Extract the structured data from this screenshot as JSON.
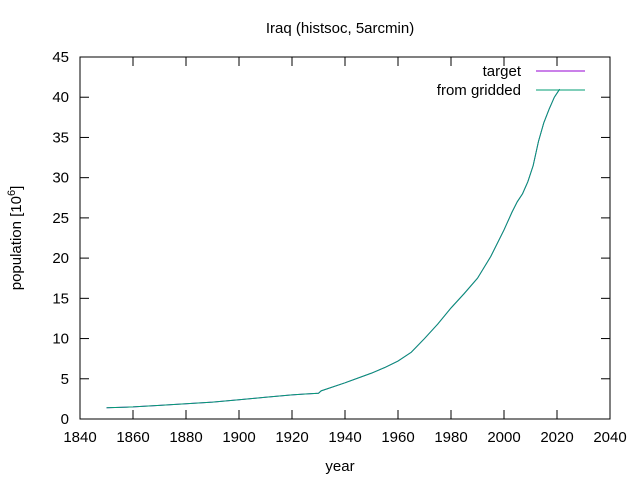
{
  "chart_data": {
    "type": "line",
    "title": "Iraq (histsoc, 5arcmin)",
    "xlabel": "year",
    "ylabel_main": "population [10",
    "ylabel_exp": "6",
    "ylabel_close": "]",
    "xlim": [
      1840,
      2040
    ],
    "ylim": [
      0,
      45
    ],
    "xticks": [
      1840,
      1860,
      1880,
      1900,
      1920,
      1940,
      1960,
      1980,
      2000,
      2020,
      2040
    ],
    "yticks": [
      0,
      5,
      10,
      15,
      20,
      25,
      30,
      35,
      40,
      45
    ],
    "grid": false,
    "legend_position": "top-right",
    "series": [
      {
        "name": "target",
        "color": "#9400d3",
        "x": [
          1850,
          1860,
          1870,
          1880,
          1890,
          1900,
          1910,
          1920,
          1925,
          1930,
          1931,
          1940,
          1950,
          1955,
          1960,
          1965,
          1970,
          1975,
          1980,
          1985,
          1990,
          1995,
          2000,
          2003,
          2005,
          2007,
          2009,
          2011,
          2013,
          2015,
          2017,
          2019,
          2021
        ],
        "y": [
          1.4,
          1.5,
          1.7,
          1.9,
          2.1,
          2.4,
          2.7,
          3.0,
          3.1,
          3.2,
          3.5,
          4.5,
          5.7,
          6.4,
          7.2,
          8.3,
          10.0,
          11.8,
          13.8,
          15.6,
          17.5,
          20.2,
          23.5,
          25.7,
          27.0,
          28.0,
          29.5,
          31.5,
          34.5,
          36.8,
          38.5,
          40.0,
          41.0
        ]
      },
      {
        "name": "from gridded",
        "color": "#009e73",
        "x": [
          1850,
          1860,
          1870,
          1880,
          1890,
          1900,
          1910,
          1920,
          1925,
          1930,
          1931,
          1940,
          1950,
          1955,
          1960,
          1965,
          1970,
          1975,
          1980,
          1985,
          1990,
          1995,
          2000,
          2003,
          2005,
          2007,
          2009,
          2011,
          2013,
          2015,
          2017,
          2019,
          2021
        ],
        "y": [
          1.4,
          1.5,
          1.7,
          1.9,
          2.1,
          2.4,
          2.7,
          3.0,
          3.1,
          3.2,
          3.5,
          4.5,
          5.7,
          6.4,
          7.2,
          8.3,
          10.0,
          11.8,
          13.8,
          15.6,
          17.5,
          20.2,
          23.5,
          25.7,
          27.0,
          28.0,
          29.5,
          31.5,
          34.5,
          36.8,
          38.5,
          40.0,
          41.0
        ]
      }
    ]
  }
}
